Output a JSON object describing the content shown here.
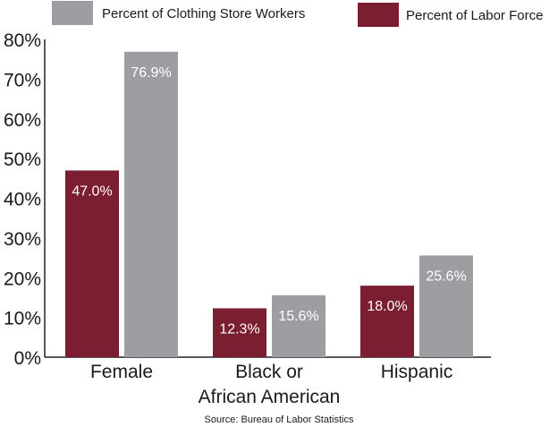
{
  "chart_data": {
    "type": "bar",
    "categories": [
      [
        "Female"
      ],
      [
        "Black or",
        "African American"
      ],
      [
        "Hispanic"
      ]
    ],
    "series": [
      {
        "name": "Percent of Labor Force",
        "values": [
          47.0,
          12.3,
          18.0
        ],
        "labels": [
          "47.0%",
          "12.3%",
          "18.0%"
        ],
        "color": "#7b1e32"
      },
      {
        "name": "Percent of Clothing Store Workers",
        "values": [
          76.9,
          15.6,
          25.6
        ],
        "labels": [
          "76.9%",
          "15.6%",
          "25.6%"
        ],
        "color": "#9d9ea2"
      }
    ],
    "yticks": [
      0,
      10,
      20,
      30,
      40,
      50,
      60,
      70,
      80
    ],
    "ytick_labels": [
      "0%",
      "10%",
      "20%",
      "30%",
      "40%",
      "50%",
      "60%",
      "70%",
      "80%"
    ],
    "ylim": [
      0,
      80
    ],
    "legend_position": "top",
    "grid": false,
    "source": "Source: Bureau of Labor Statistics"
  }
}
